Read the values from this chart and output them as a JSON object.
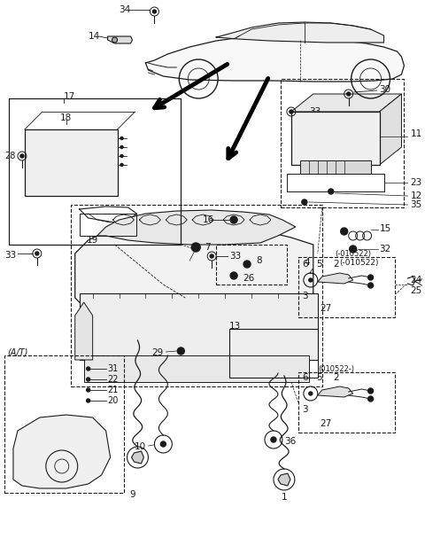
{
  "bg_color": "#ffffff",
  "fig_width": 4.8,
  "fig_height": 6.16,
  "dpi": 100,
  "line_color": "#1a1a1a",
  "text_color": "#1a1a1a",
  "font_size": 7.5
}
